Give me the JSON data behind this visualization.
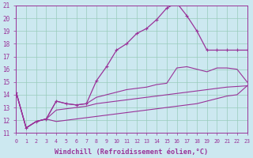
{
  "xlabel": "Windchill (Refroidissement éolien,°C)",
  "bg_color": "#cce8f0",
  "line_color": "#993399",
  "grid_color": "#99ccbb",
  "xlim": [
    0,
    23
  ],
  "ylim": [
    11,
    21
  ],
  "xticks": [
    0,
    1,
    2,
    3,
    4,
    5,
    6,
    7,
    8,
    9,
    10,
    11,
    12,
    13,
    14,
    15,
    16,
    17,
    18,
    19,
    20,
    21,
    22,
    23
  ],
  "yticks": [
    11,
    12,
    13,
    14,
    15,
    16,
    17,
    18,
    19,
    20,
    21
  ],
  "line1_x": [
    0,
    1,
    2,
    3,
    4,
    5,
    6,
    7,
    8,
    9,
    10,
    11,
    12,
    13,
    14,
    15,
    16,
    17,
    18,
    19,
    20,
    21,
    22,
    23
  ],
  "line1_y": [
    14.2,
    11.4,
    11.9,
    12.1,
    13.5,
    13.3,
    13.2,
    13.3,
    15.1,
    16.2,
    17.5,
    18.0,
    18.8,
    19.2,
    19.9,
    20.8,
    21.2,
    20.2,
    19.0,
    17.5,
    17.5,
    17.5,
    17.5,
    17.5
  ],
  "line2_x": [
    0,
    1,
    2,
    3,
    4,
    5,
    6,
    7,
    8,
    9,
    10,
    11,
    12,
    13,
    14,
    15,
    16,
    17,
    18,
    19,
    20,
    21,
    22,
    23
  ],
  "line2_y": [
    14.2,
    11.4,
    11.9,
    12.1,
    13.5,
    13.3,
    13.2,
    13.3,
    13.8,
    14.0,
    14.2,
    14.4,
    14.5,
    14.6,
    14.8,
    14.9,
    16.1,
    16.2,
    16.0,
    15.8,
    16.1,
    16.1,
    16.0,
    15.0
  ],
  "line3_x": [
    0,
    1,
    2,
    3,
    4,
    5,
    6,
    7,
    8,
    9,
    10,
    11,
    12,
    13,
    14,
    15,
    16,
    17,
    18,
    19,
    20,
    21,
    22,
    23
  ],
  "line3_y": [
    14.2,
    11.4,
    11.9,
    12.1,
    12.8,
    12.9,
    13.0,
    13.1,
    13.3,
    13.4,
    13.5,
    13.6,
    13.7,
    13.8,
    13.9,
    14.0,
    14.1,
    14.2,
    14.3,
    14.4,
    14.5,
    14.6,
    14.65,
    14.7
  ],
  "line4_x": [
    0,
    1,
    2,
    3,
    4,
    5,
    6,
    7,
    8,
    9,
    10,
    11,
    12,
    13,
    14,
    15,
    16,
    17,
    18,
    19,
    20,
    21,
    22,
    23
  ],
  "line4_y": [
    14.2,
    11.4,
    11.9,
    12.1,
    11.9,
    12.0,
    12.1,
    12.2,
    12.3,
    12.4,
    12.5,
    12.6,
    12.7,
    12.8,
    12.9,
    13.0,
    13.1,
    13.2,
    13.3,
    13.5,
    13.7,
    13.9,
    14.0,
    14.7
  ]
}
